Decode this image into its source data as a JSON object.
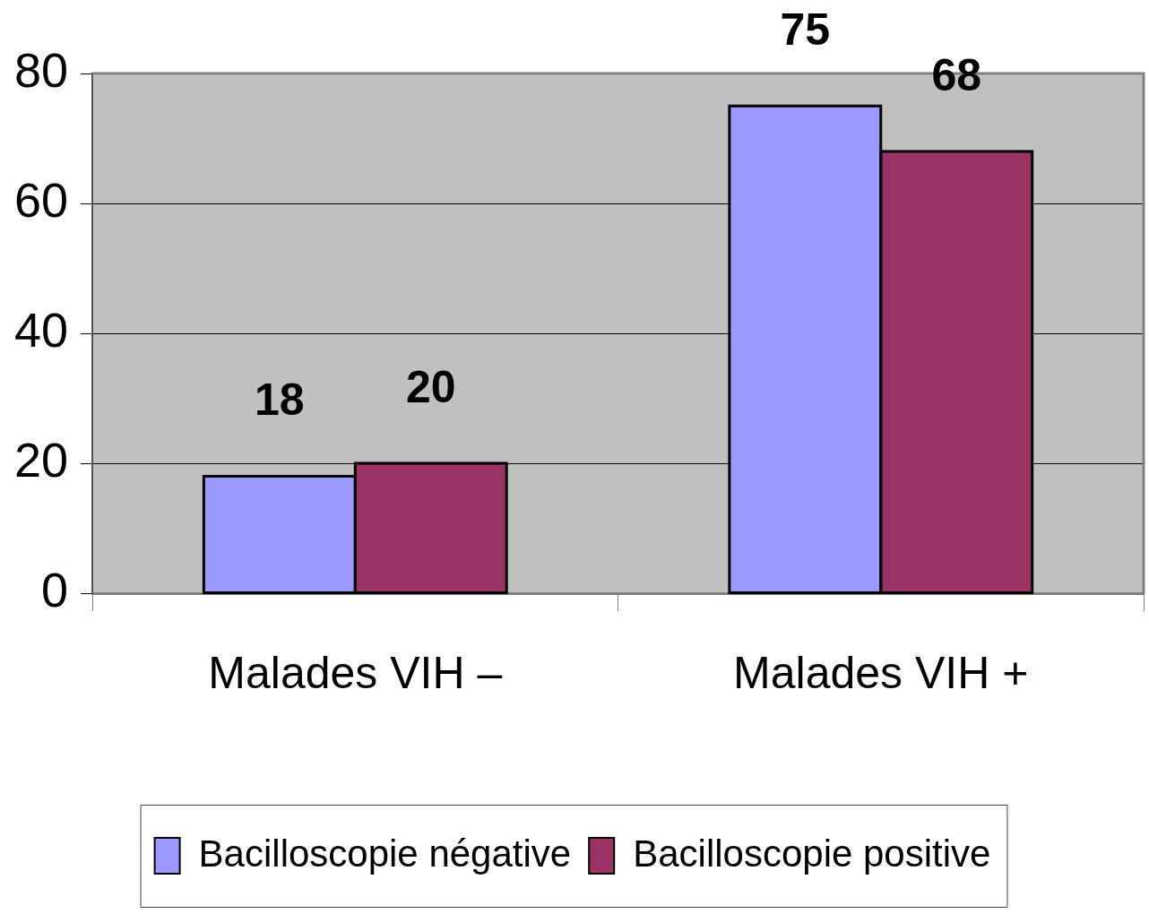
{
  "chart_data": {
    "type": "bar",
    "categories": [
      "Malades VIH –",
      "Malades VIH +"
    ],
    "series": [
      {
        "name": "Bacilloscopie négative",
        "color": "#9999ff",
        "values": [
          18,
          75
        ]
      },
      {
        "name": "Bacilloscopie positive",
        "color": "#993366",
        "values": [
          20,
          68
        ]
      }
    ],
    "ylim": [
      0,
      80
    ],
    "yticks": [
      0,
      20,
      40,
      60,
      80
    ],
    "grid": "y",
    "legend": "bottom",
    "data_labels": true
  }
}
